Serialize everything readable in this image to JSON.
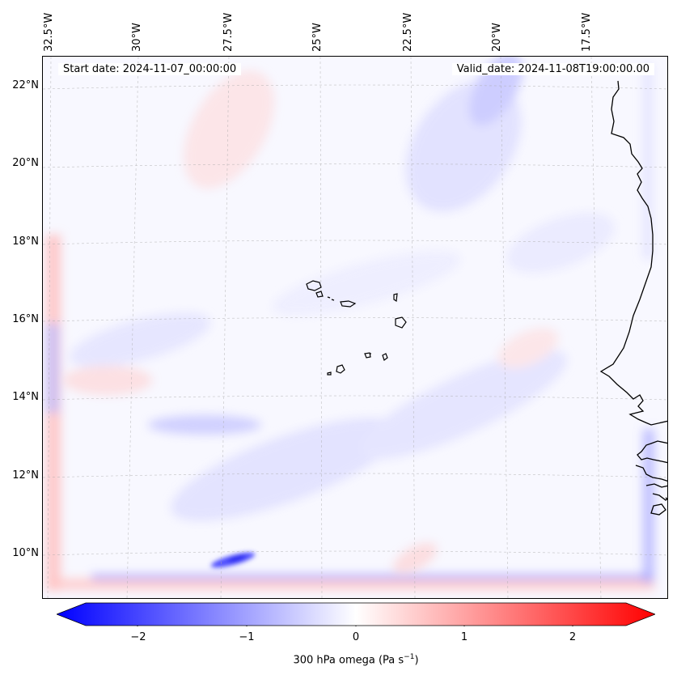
{
  "map": {
    "start_date": "Start date: 2024-11-07_00:00:00",
    "valid_date": "Valid_date: 2024-11-08T19:00:00.00",
    "lon_labels": [
      "32.5°W",
      "30°W",
      "27.5°W",
      "25°W",
      "22.5°W",
      "20°W",
      "17.5°W"
    ],
    "lat_labels": [
      "22°N",
      "20°N",
      "18°N",
      "16°N",
      "14°N",
      "12°N",
      "10°N"
    ],
    "gridlines": true,
    "features": [
      "Cape Verde islands",
      "West African coastline"
    ],
    "colors": {
      "negative": "#0000ff",
      "neutral": "#ffffff",
      "positive": "#ff0000",
      "coastline": "#000000"
    }
  },
  "colorbar": {
    "ticks": [
      "−2",
      "−1",
      "0",
      "1",
      "2"
    ],
    "label": "300 hPa omega (Pa s",
    "label_sup": "−1",
    "label_end": ")",
    "range": [
      -2.6,
      2.6
    ],
    "extend": "both",
    "cmap": "bwr"
  }
}
